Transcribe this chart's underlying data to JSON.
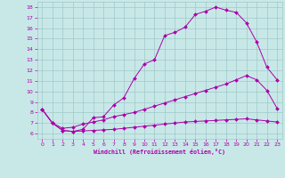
{
  "title": "",
  "xlabel": "Windchill (Refroidissement éolien,°C)",
  "xlim": [
    -0.5,
    23.5
  ],
  "ylim": [
    5.5,
    18.5
  ],
  "xticks": [
    0,
    1,
    2,
    3,
    4,
    5,
    6,
    7,
    8,
    9,
    10,
    11,
    12,
    13,
    14,
    15,
    16,
    17,
    18,
    19,
    20,
    21,
    22,
    23
  ],
  "yticks": [
    6,
    7,
    8,
    9,
    10,
    11,
    12,
    13,
    14,
    15,
    16,
    17,
    18
  ],
  "bg_color": "#c8e8e8",
  "grid_color": "#a0c8c8",
  "line_color": "#aa00aa",
  "line1_x": [
    0,
    1,
    2,
    3,
    4,
    5,
    6,
    7,
    8,
    9,
    10,
    11,
    12,
    13,
    14,
    15,
    16,
    17,
    18,
    19,
    20,
    21,
    22,
    23
  ],
  "line1_y": [
    8.3,
    7.0,
    6.3,
    6.2,
    6.4,
    7.5,
    7.6,
    8.7,
    9.4,
    11.2,
    12.6,
    13.0,
    15.3,
    15.6,
    16.1,
    17.3,
    17.6,
    18.0,
    17.7,
    17.5,
    16.5,
    14.7,
    12.3,
    11.1
  ],
  "line2_x": [
    0,
    1,
    2,
    3,
    4,
    5,
    6,
    7,
    8,
    9,
    10,
    11,
    12,
    13,
    14,
    15,
    16,
    17,
    18,
    19,
    20,
    21,
    22,
    23
  ],
  "line2_y": [
    8.3,
    7.0,
    6.5,
    6.6,
    6.9,
    7.1,
    7.3,
    7.6,
    7.8,
    8.0,
    8.3,
    8.6,
    8.9,
    9.2,
    9.5,
    9.8,
    10.1,
    10.4,
    10.7,
    11.1,
    11.5,
    11.1,
    10.1,
    8.4
  ],
  "line3_x": [
    0,
    1,
    2,
    3,
    4,
    5,
    6,
    7,
    8,
    9,
    10,
    11,
    12,
    13,
    14,
    15,
    16,
    17,
    18,
    19,
    20,
    21,
    22,
    23
  ],
  "line3_y": [
    8.3,
    7.0,
    6.3,
    6.2,
    6.25,
    6.3,
    6.35,
    6.4,
    6.5,
    6.6,
    6.7,
    6.8,
    6.9,
    7.0,
    7.1,
    7.15,
    7.2,
    7.25,
    7.3,
    7.35,
    7.4,
    7.3,
    7.2,
    7.1
  ]
}
